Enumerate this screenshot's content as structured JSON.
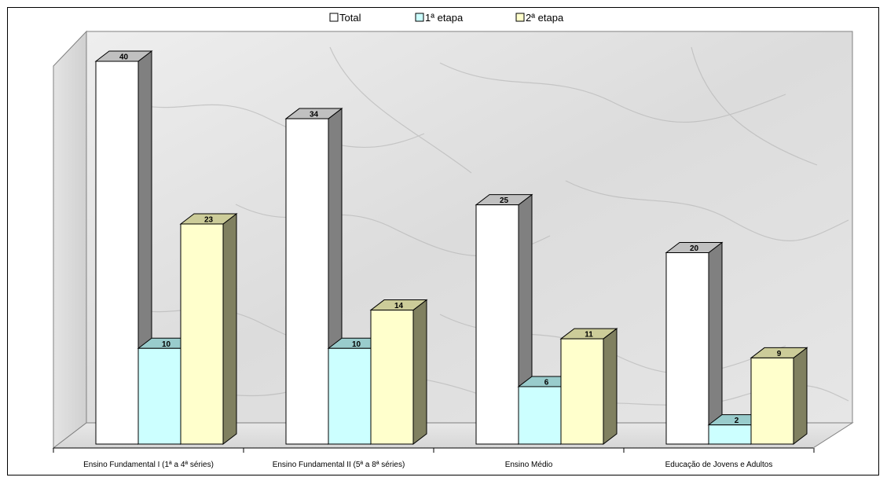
{
  "chart_data": {
    "type": "bar",
    "title": "",
    "xlabel": "",
    "ylabel": "",
    "ylim": [
      0,
      40
    ],
    "grid": false,
    "legend_position": "top",
    "categories": [
      "Ensino Fundamental I (1ª a 4ª séries)",
      "Ensino Fundamental II (5ª a 8ª séries)",
      "Ensino Médio",
      "Educação de Jovens e Adultos"
    ],
    "series": [
      {
        "name": "Total",
        "values": [
          40,
          34,
          25,
          20
        ],
        "color": "#ffffff",
        "side_color": "#808080",
        "top_color": "#c0c0c0"
      },
      {
        "name": "1ª etapa",
        "values": [
          10,
          10,
          6,
          2
        ],
        "color": "#ccffff",
        "side_color": "#669999",
        "top_color": "#99cccc"
      },
      {
        "name": "2ª etapa",
        "values": [
          23,
          14,
          11,
          9
        ],
        "color": "#ffffcc",
        "side_color": "#808060",
        "top_color": "#cccc99"
      }
    ]
  }
}
